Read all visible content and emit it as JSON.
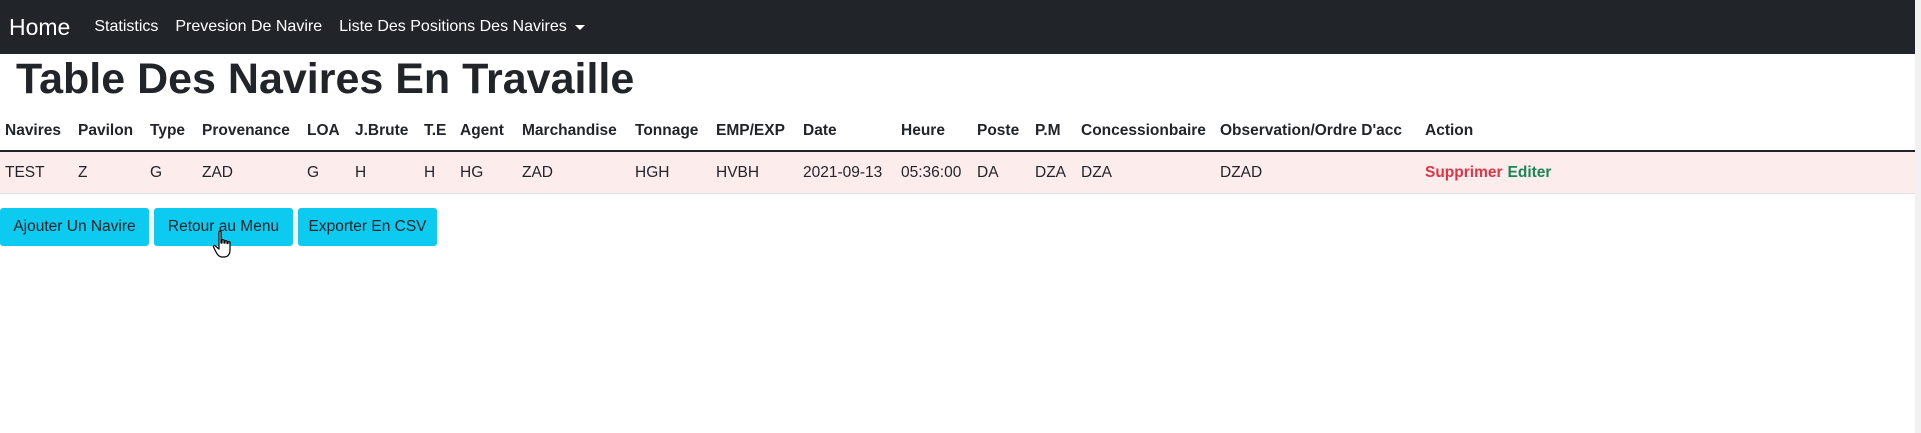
{
  "navbar": {
    "brand": "Home",
    "links": [
      "Statistics",
      "Prevesion De Navire",
      "Liste Des Positions Des Navires"
    ]
  },
  "page": {
    "title": "Table Des Navires En Travaille"
  },
  "table": {
    "headers": [
      "Navires",
      "Pavilon",
      "Type",
      "Provenance",
      "LOA",
      "J.Brute",
      "T.E",
      "Agent",
      "Marchandise",
      "Tonnage",
      "EMP/EXP",
      "Date",
      "Heure",
      "Poste",
      "P.M",
      "Concessionbaire",
      "Observation/Ordre D'acc",
      "Action"
    ],
    "rows": [
      {
        "cells": [
          "TEST",
          "Z",
          "G",
          "ZAD",
          "G",
          "H",
          "H",
          "HG",
          "ZAD",
          "HGH",
          "HVBH",
          "2021-09-13",
          "05:36:00",
          "DA",
          "DZA",
          "DZA",
          "DZAD"
        ],
        "actions": {
          "delete": "Supprimer",
          "edit": "Editer"
        }
      }
    ]
  },
  "buttons": {
    "add": "Ajouter Un Navire",
    "back": "Retour au Menu",
    "export": "Exporter En CSV"
  },
  "colors": {
    "navbar": "#212529",
    "button": "#0dcaf0",
    "delete": "#dc3545",
    "edit": "#198754",
    "row_bg": "#fdecec"
  }
}
